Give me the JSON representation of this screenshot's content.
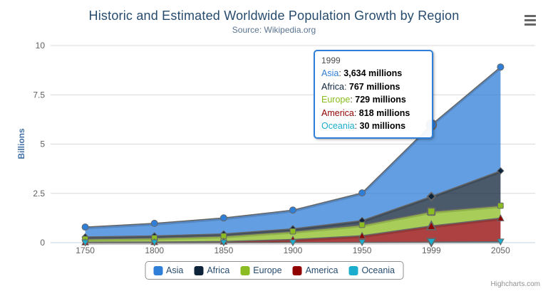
{
  "ui": {
    "menu_icon": "hamburger-menu-icon",
    "credits_label": "Highcharts.com"
  },
  "colors": {
    "title": "#274b6d",
    "subtitle": "#5a7490",
    "y_axis_title": "#4572A7",
    "axis_labels": "#606060",
    "axis_line": "#C0D0E0",
    "gridline": "#D8D8D8",
    "series_outline": "#666666",
    "legend_text": "#274b6d",
    "legend_border": "#909090",
    "tooltip_border": "#2f7ed8",
    "credits_text": "#909090"
  },
  "chart_data": {
    "type": "area",
    "stacking": "normal",
    "title": "Historic and Estimated Worldwide Population Growth by Region",
    "subtitle": "Source: Wikipedia.org",
    "xlabel": "",
    "ylabel": "Billions",
    "ylim": [
      0,
      10
    ],
    "yticks": [
      "0",
      "2.5",
      "5",
      "7.5",
      "10"
    ],
    "categories": [
      "1750",
      "1800",
      "1850",
      "1900",
      "1950",
      "1999",
      "2050"
    ],
    "values_unit": "millions",
    "grid": "horizontal",
    "legend_position": "bottom",
    "hover_index": 5,
    "stack_order_hint": "first series on top (Oceania at bottom of stack)",
    "series": [
      {
        "name": "Asia",
        "color": "#2f7ed8",
        "marker": "circle",
        "values": [
          502,
          635,
          809,
          947,
          1402,
          3634,
          5268
        ]
      },
      {
        "name": "Africa",
        "color": "#0d233a",
        "marker": "diamond",
        "values": [
          106,
          107,
          111,
          133,
          221,
          767,
          1766
        ]
      },
      {
        "name": "Europe",
        "color": "#8bbc21",
        "marker": "square",
        "values": [
          163,
          203,
          276,
          408,
          547,
          729,
          628
        ]
      },
      {
        "name": "America",
        "color": "#910000",
        "marker": "triangle",
        "values": [
          18,
          31,
          54,
          156,
          339,
          818,
          1201
        ]
      },
      {
        "name": "Oceania",
        "color": "#1aadce",
        "marker": "triangle-down",
        "values": [
          2,
          2,
          2,
          6,
          13,
          30,
          46
        ]
      }
    ]
  },
  "tooltip": {
    "header": "1999",
    "separator": ": ",
    "rows": [
      {
        "name": "Asia",
        "value": "3,634 millions"
      },
      {
        "name": "Africa",
        "value": "767 millions"
      },
      {
        "name": "Europe",
        "value": "729 millions"
      },
      {
        "name": "America",
        "value": "818 millions"
      },
      {
        "name": "Oceania",
        "value": "30 millions"
      }
    ]
  }
}
